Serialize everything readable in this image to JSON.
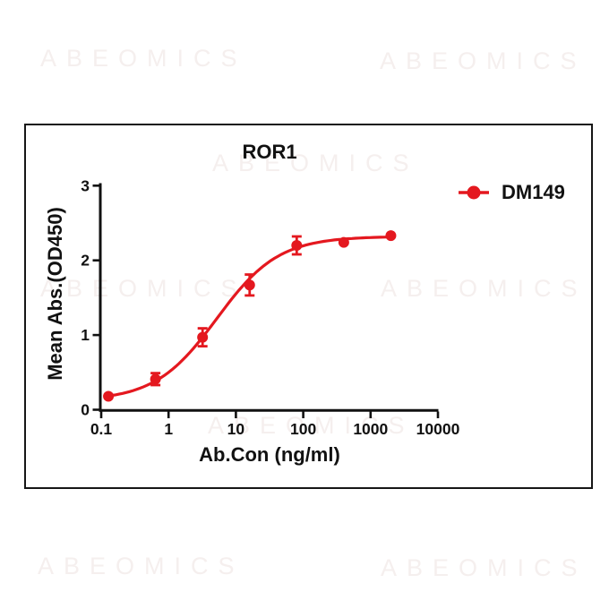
{
  "watermark": {
    "text": "ABEOMICS"
  },
  "chart": {
    "title": "ROR1",
    "xlabel": "Ab.Con (ng/ml)",
    "ylabel": "Mean Abs.(OD450)",
    "legend": {
      "label": "DM149"
    }
  },
  "colors": {
    "series_red": "#e4181f",
    "axis": "#111111",
    "watermark": "#f5efee"
  },
  "chart_data": {
    "type": "line",
    "title": "ROR1",
    "xlabel": "Ab.Con (ng/ml)",
    "ylabel": "Mean Abs.(OD450)",
    "x_scale": "log10",
    "xlim": [
      0.1,
      10000
    ],
    "ylim": [
      0,
      3
    ],
    "x_ticks": [
      0.1,
      1,
      10,
      100,
      1000,
      10000
    ],
    "x_tick_labels": [
      "0.1",
      "1",
      "10",
      "100",
      "1000",
      "10000"
    ],
    "y_ticks": [
      0,
      1,
      2,
      3
    ],
    "y_tick_labels": [
      "0",
      "1",
      "2",
      "3"
    ],
    "grid": false,
    "legend_position": "top-right",
    "series": [
      {
        "name": "DM149",
        "color": "#e4181f",
        "marker": "circle",
        "x": [
          0.128,
          0.64,
          3.2,
          16,
          80,
          400,
          2000
        ],
        "y": [
          0.18,
          0.41,
          0.97,
          1.67,
          2.2,
          2.24,
          2.33
        ],
        "y_err": [
          0,
          0.08,
          0.12,
          0.14,
          0.12,
          0,
          0
        ]
      }
    ],
    "fit": {
      "model": "4PL",
      "bottom": 0.12,
      "top": 2.32,
      "ec50": 5.2,
      "hill": 0.95
    }
  }
}
